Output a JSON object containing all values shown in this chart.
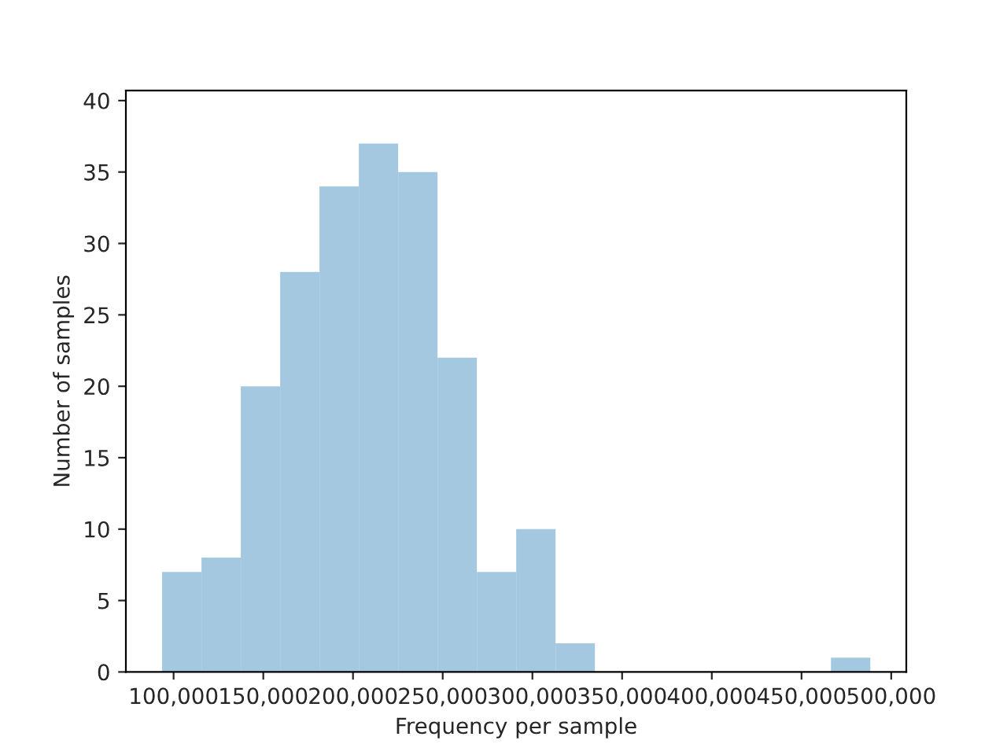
{
  "chart_data": {
    "type": "histogram",
    "xlabel": "Frequency per sample",
    "ylabel": "Number of samples",
    "bins": [
      93600,
      115530,
      137460,
      159390,
      181320,
      203250,
      225180,
      247110,
      269040,
      290970,
      312900,
      334830,
      356760,
      378690,
      400620,
      422550,
      444480,
      466410,
      488340
    ],
    "values": [
      7,
      8,
      20,
      28,
      34,
      37,
      35,
      22,
      7,
      10,
      2,
      0,
      0,
      0,
      0,
      0,
      0,
      1
    ],
    "color": "#a5c8e1",
    "xlim": [
      73400,
      508400
    ],
    "ylim": [
      0,
      40.7
    ],
    "xticks": [
      {
        "value": 100000,
        "label": "100,000"
      },
      {
        "value": 150000,
        "label": "150,000"
      },
      {
        "value": 200000,
        "label": "200,000"
      },
      {
        "value": 250000,
        "label": "250,000"
      },
      {
        "value": 300000,
        "label": "300,000"
      },
      {
        "value": 350000,
        "label": "350,000"
      },
      {
        "value": 400000,
        "label": "400,000"
      },
      {
        "value": 450000,
        "label": "450,000"
      },
      {
        "value": 500000,
        "label": "500,000"
      }
    ],
    "yticks": [
      0,
      5,
      10,
      15,
      20,
      25,
      30,
      35,
      40
    ],
    "grid": false,
    "legend": false
  }
}
